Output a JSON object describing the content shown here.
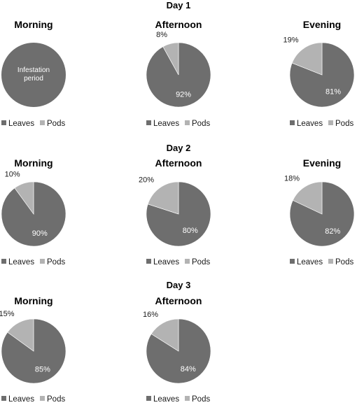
{
  "colors": {
    "leaves": "#6e6e6e",
    "pods": "#b3b3b3"
  },
  "chart_data": {
    "type": "pie",
    "days": [
      {
        "title": "Day 1",
        "panels": [
          {
            "title": "Morning",
            "note": "Infestation period",
            "slices": []
          },
          {
            "title": "Afternoon",
            "slices": [
              {
                "label": "Leaves",
                "value": 92,
                "text": "92%"
              },
              {
                "label": "Pods",
                "value": 8,
                "text": "8%"
              }
            ]
          },
          {
            "title": "Evening",
            "slices": [
              {
                "label": "Leaves",
                "value": 81,
                "text": "81%"
              },
              {
                "label": "Pods",
                "value": 19,
                "text": "19%"
              }
            ]
          }
        ]
      },
      {
        "title": "Day 2",
        "panels": [
          {
            "title": "Morning",
            "slices": [
              {
                "label": "Leaves",
                "value": 90,
                "text": "90%"
              },
              {
                "label": "Pods",
                "value": 10,
                "text": "10%"
              }
            ]
          },
          {
            "title": "Afternoon",
            "slices": [
              {
                "label": "Leaves",
                "value": 80,
                "text": "80%"
              },
              {
                "label": "Pods",
                "value": 20,
                "text": "20%"
              }
            ]
          },
          {
            "title": "Evening",
            "slices": [
              {
                "label": "Leaves",
                "value": 82,
                "text": "82%"
              },
              {
                "label": "Pods",
                "value": 18,
                "text": "18%"
              }
            ]
          }
        ]
      },
      {
        "title": "Day 3",
        "panels": [
          {
            "title": "Morning",
            "slices": [
              {
                "label": "Leaves",
                "value": 85,
                "text": "85%"
              },
              {
                "label": "Pods",
                "value": 15,
                "text": "15%"
              }
            ]
          },
          {
            "title": "Afternoon",
            "slices": [
              {
                "label": "Leaves",
                "value": 84,
                "text": "84%"
              },
              {
                "label": "Pods",
                "value": 16,
                "text": "16%"
              }
            ]
          }
        ]
      }
    ],
    "legend": [
      "Leaves",
      "Pods"
    ],
    "legend_placement": "bottom"
  }
}
